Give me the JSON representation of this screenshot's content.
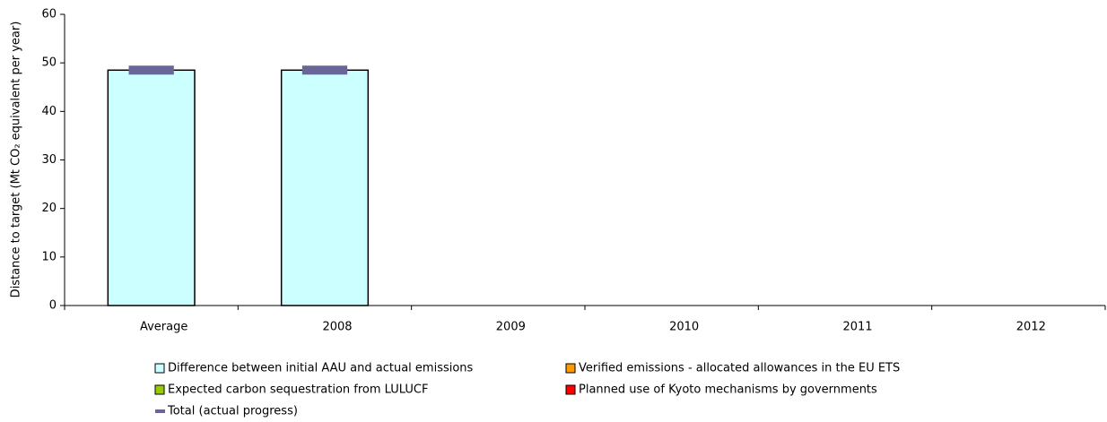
{
  "chart_data": {
    "type": "stacked-bar",
    "y_label": "Distance to target (Mt CO₂ equivalent per year)",
    "categories": [
      "Average",
      "2008",
      "2009",
      "2010",
      "2011",
      "2012"
    ],
    "series": [
      {
        "name": "Difference between initial AAU and actual emissions",
        "color": "#ccffff",
        "values": [
          48.5,
          48.5,
          null,
          null,
          null,
          null
        ]
      },
      {
        "name": "Verified emissions - allocated allowances in the EU ETS",
        "color": "#ff9900",
        "values": [
          null,
          null,
          null,
          null,
          null,
          null
        ]
      },
      {
        "name": "Expected carbon sequestration from LULUCF",
        "color": "#99cc00",
        "values": [
          null,
          null,
          null,
          null,
          null,
          null
        ]
      },
      {
        "name": "Planned use of Kyoto mechanisms by governments",
        "color": "#ff0000",
        "values": [
          null,
          null,
          null,
          null,
          null,
          null
        ]
      },
      {
        "name": "Total (actual progress)",
        "color": "#666699",
        "style": "dash",
        "values": [
          48.5,
          48.5,
          null,
          null,
          null,
          null
        ]
      }
    ],
    "ylim": [
      0,
      60
    ],
    "yticks": [
      0,
      10,
      20,
      30,
      40,
      50,
      60
    ]
  }
}
